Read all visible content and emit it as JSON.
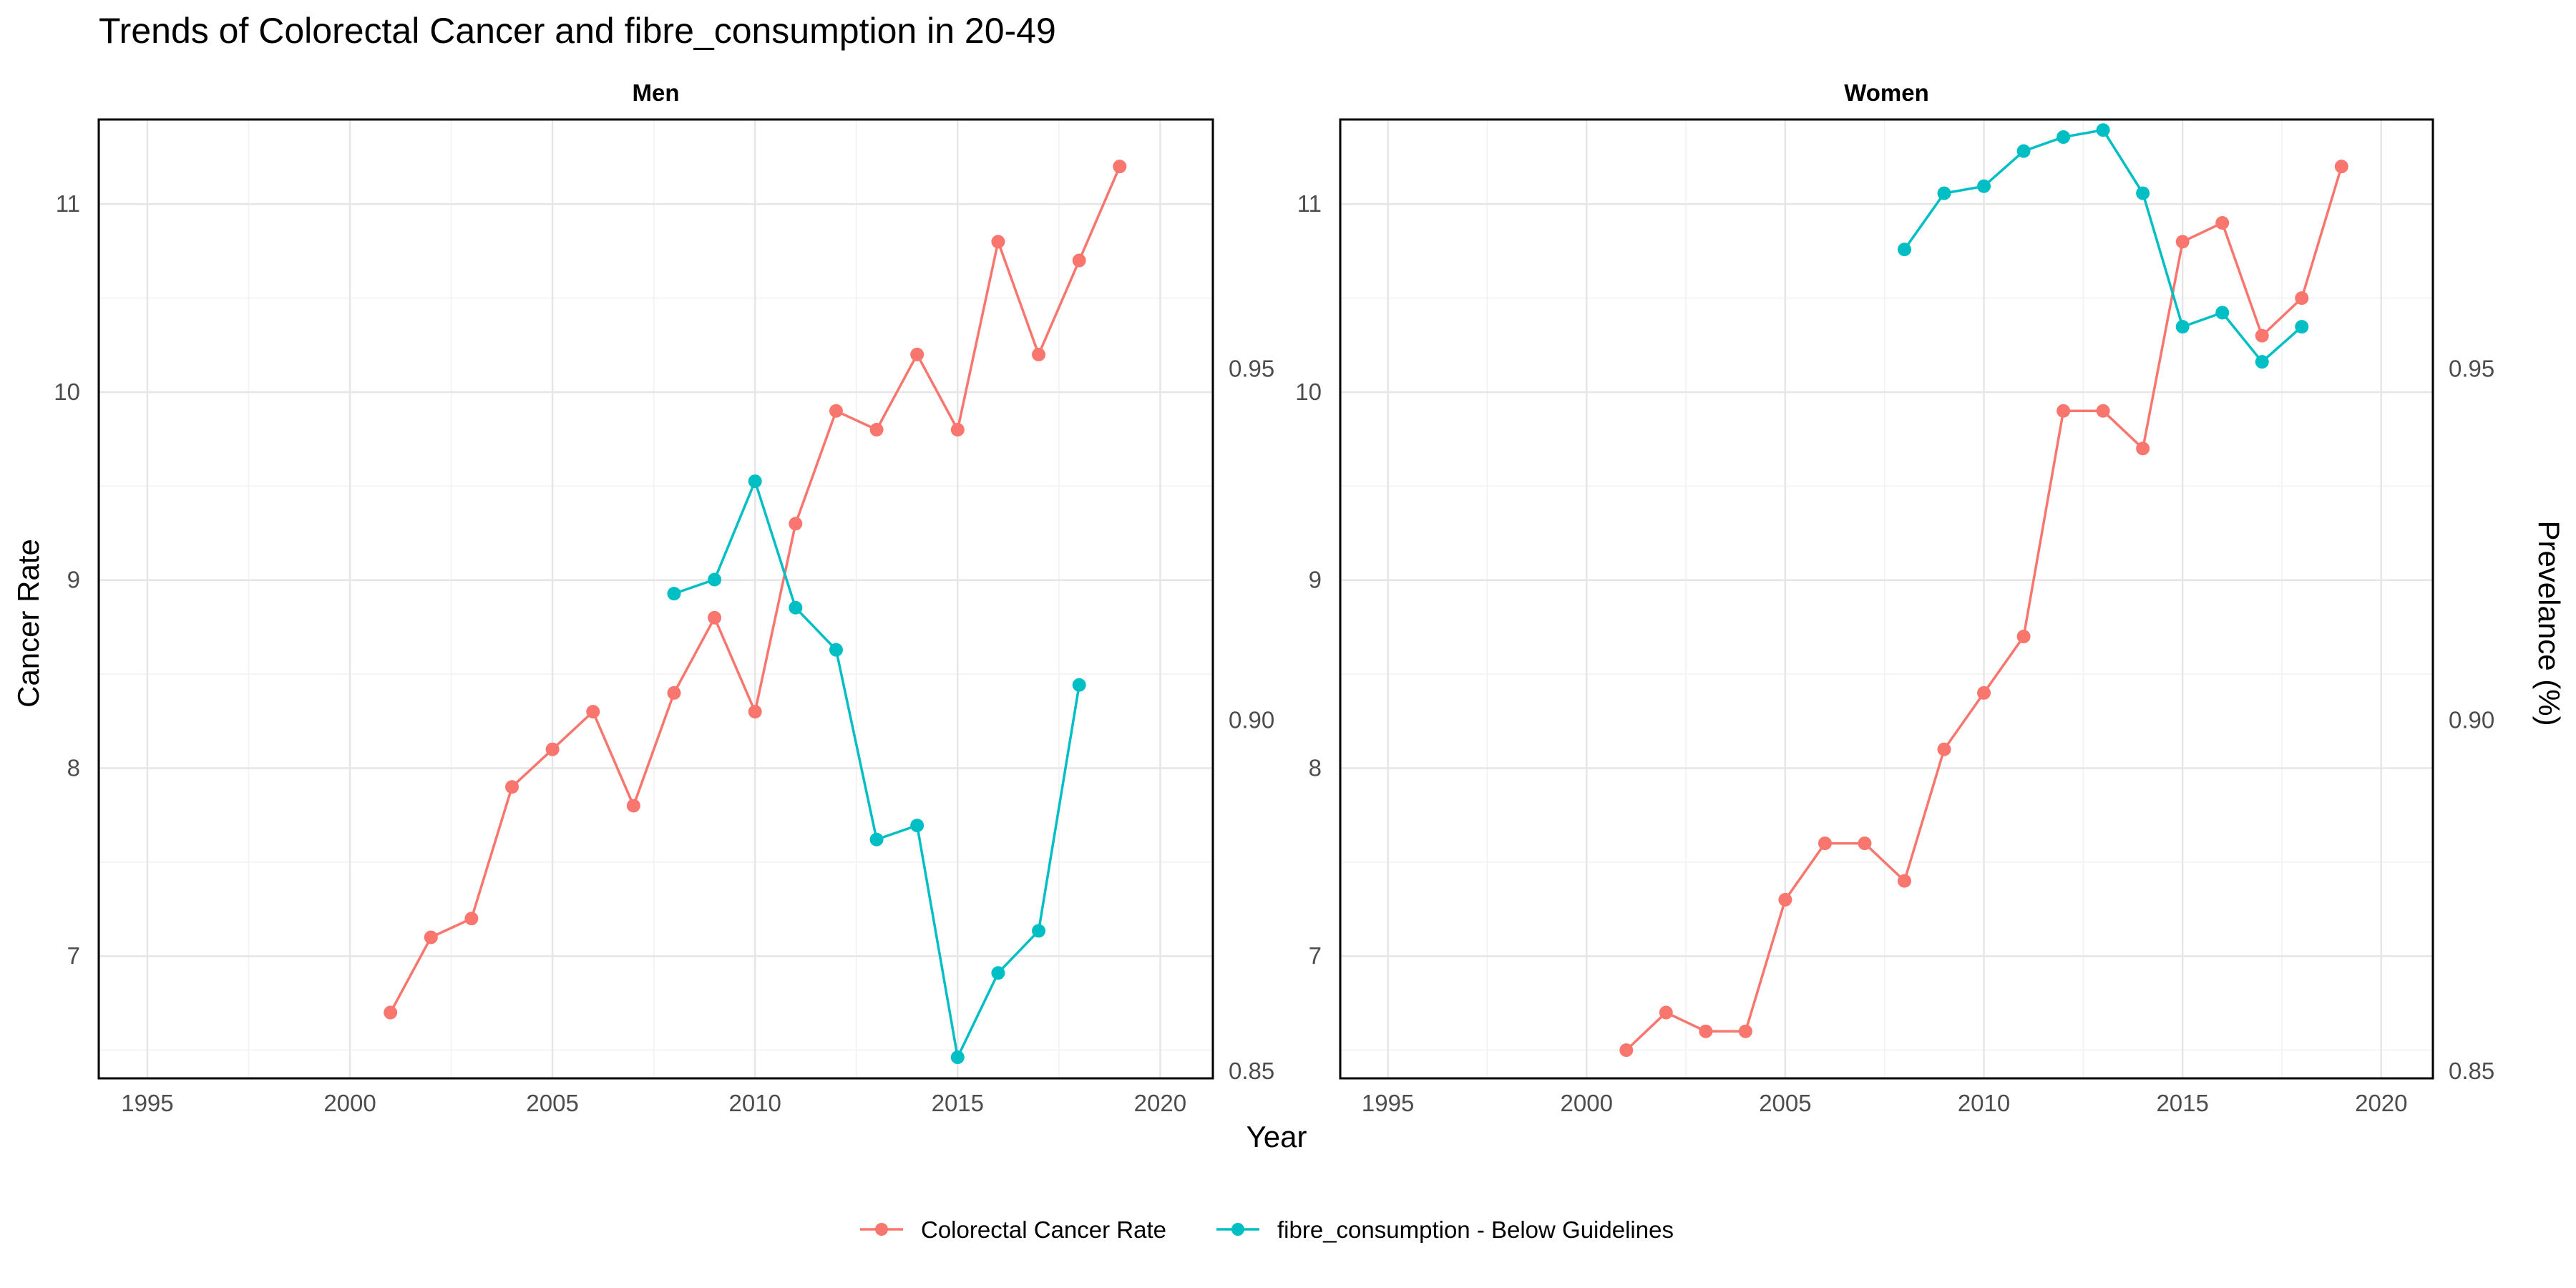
{
  "chart_data": {
    "type": "line",
    "title": "Trends of Colorectal Cancer and fibre_consumption in 20-49",
    "xlabel": "Year",
    "ylabel_left": "Cancer Rate",
    "ylabel_right": "Prevelance (%)",
    "xlim": [
      1993.8,
      2021.3
    ],
    "x_ticks": [
      1995,
      2000,
      2005,
      2010,
      2015,
      2020
    ],
    "y_left_lim": [
      6.35,
      11.45
    ],
    "y_left_ticks": [
      7,
      8,
      9,
      10,
      11
    ],
    "y_right_lim": [
      0.849,
      0.9855
    ],
    "y_right_ticks": [
      0.85,
      0.9,
      0.95
    ],
    "y_right_tick_labels": [
      "0.85",
      "0.90",
      "0.95"
    ],
    "grid": true,
    "legend_position": "bottom",
    "legend": [
      {
        "label": "Colorectal Cancer Rate",
        "color": "#F8766D"
      },
      {
        "label": "fibre_consumption - Below Guidelines",
        "color": "#00BFC4"
      }
    ],
    "panels": [
      {
        "name": "Men",
        "series": [
          {
            "name": "Colorectal Cancer Rate",
            "axis": "left",
            "color": "#F8766D",
            "x": [
              2001,
              2002,
              2003,
              2004,
              2005,
              2006,
              2007,
              2008,
              2009,
              2010,
              2011,
              2012,
              2013,
              2014,
              2015,
              2016,
              2017,
              2018,
              2019
            ],
            "y": [
              6.7,
              7.1,
              7.2,
              7.9,
              8.1,
              8.3,
              7.8,
              8.4,
              8.8,
              8.3,
              9.3,
              9.9,
              9.8,
              10.2,
              9.8,
              10.8,
              10.2,
              10.7,
              11.2
            ]
          },
          {
            "name": "fibre_consumption - Below Guidelines",
            "axis": "right",
            "color": "#00BFC4",
            "x": [
              2008,
              2009,
              2010,
              2011,
              2012,
              2013,
              2014,
              2015,
              2016,
              2017,
              2018
            ],
            "y": [
              0.918,
              0.92,
              0.934,
              0.916,
              0.91,
              0.883,
              0.885,
              0.852,
              0.864,
              0.87,
              0.905
            ]
          }
        ]
      },
      {
        "name": "Women",
        "series": [
          {
            "name": "Colorectal Cancer Rate",
            "axis": "left",
            "color": "#F8766D",
            "x": [
              2001,
              2002,
              2003,
              2004,
              2005,
              2006,
              2007,
              2008,
              2009,
              2010,
              2011,
              2012,
              2013,
              2014,
              2015,
              2016,
              2017,
              2018,
              2019
            ],
            "y": [
              6.5,
              6.7,
              6.6,
              6.6,
              7.3,
              7.6,
              7.6,
              7.4,
              8.1,
              8.4,
              8.7,
              9.9,
              9.9,
              9.7,
              10.8,
              10.9,
              10.3,
              10.5,
              11.2
            ]
          },
          {
            "name": "fibre_consumption - Below Guidelines",
            "axis": "right",
            "color": "#00BFC4",
            "x": [
              2008,
              2009,
              2010,
              2011,
              2012,
              2013,
              2014,
              2015,
              2016,
              2017,
              2018
            ],
            "y": [
              0.967,
              0.975,
              0.976,
              0.981,
              0.983,
              0.984,
              0.975,
              0.956,
              0.958,
              0.951,
              0.956
            ]
          }
        ]
      }
    ]
  }
}
